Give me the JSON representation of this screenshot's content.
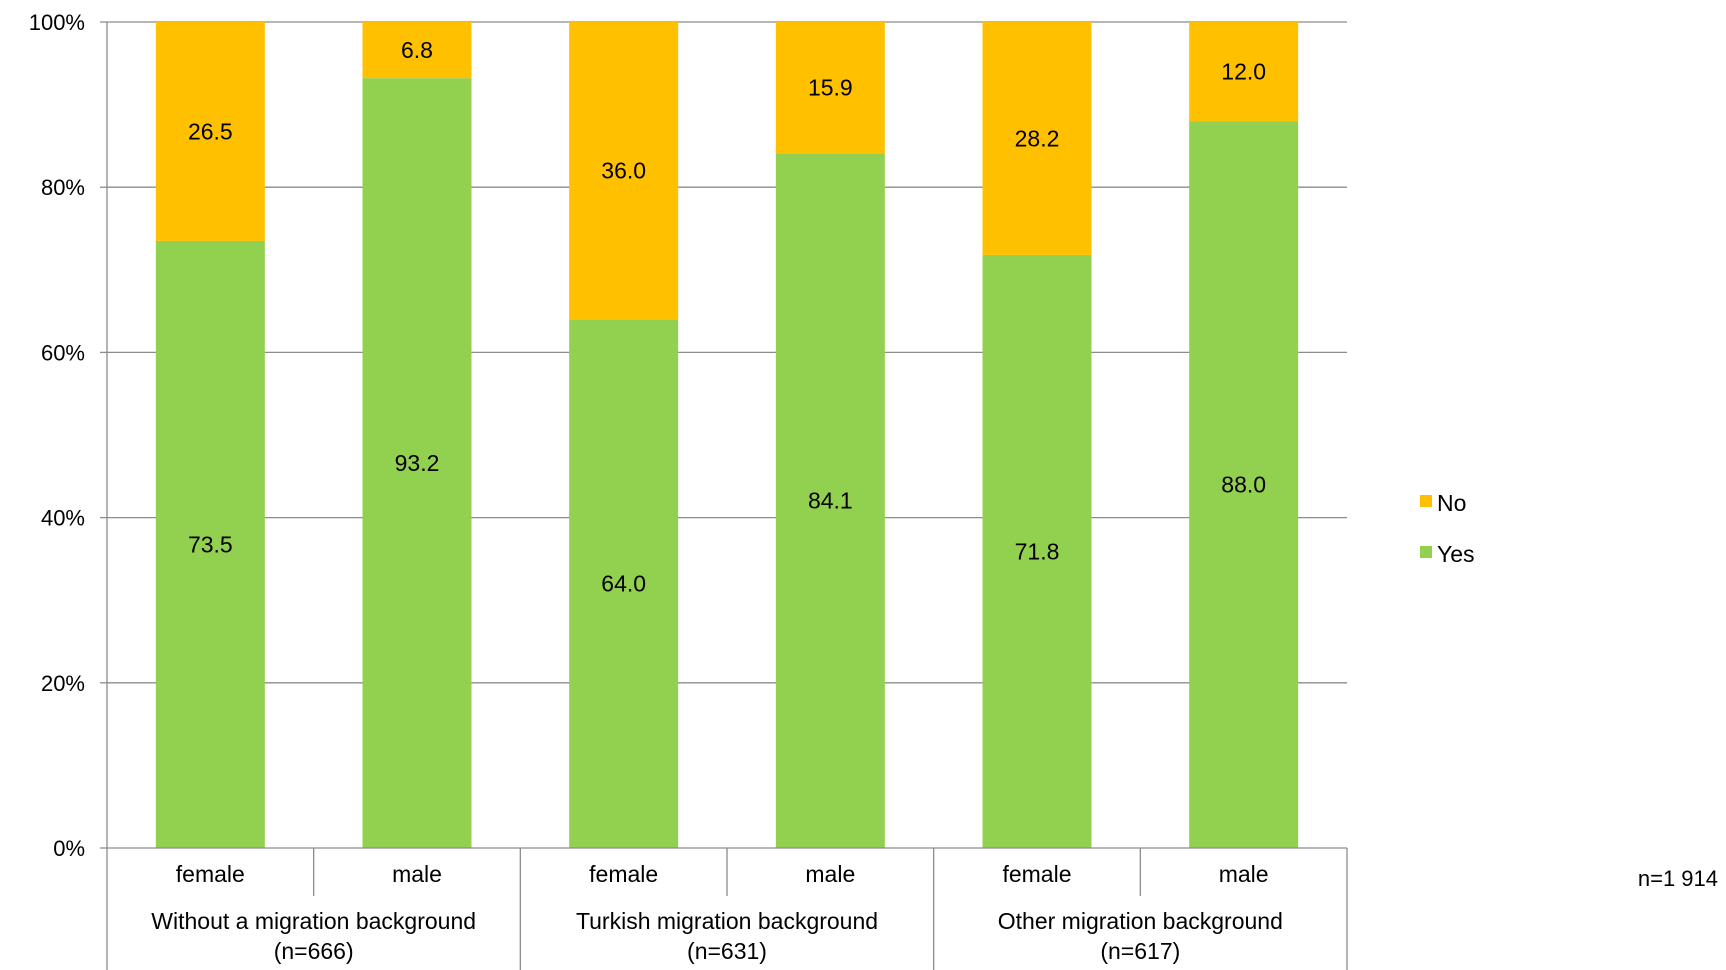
{
  "chart_data": {
    "type": "bar",
    "stacked": true,
    "percent_axis": true,
    "categories": [
      "female",
      "male",
      "female",
      "male",
      "female",
      "male"
    ],
    "groups": [
      {
        "label": "Without a migration background",
        "n_label": "(n=666)"
      },
      {
        "label": "Turkish migration background",
        "n_label": "(n=631)"
      },
      {
        "label": "Other migration background",
        "n_label": "(n=617)"
      }
    ],
    "series": [
      {
        "name": "Yes",
        "color": "#92D050",
        "values": [
          73.5,
          93.2,
          64.0,
          84.1,
          71.8,
          88.0
        ]
      },
      {
        "name": "No",
        "color": "#FFC000",
        "values": [
          26.5,
          6.8,
          36.0,
          15.9,
          28.2,
          12.0
        ]
      }
    ],
    "ylim": [
      0,
      100
    ],
    "yticks": [
      "0%",
      "20%",
      "40%",
      "60%",
      "80%",
      "100%"
    ],
    "grid": true,
    "legend_order": [
      "No",
      "Yes"
    ],
    "legend_position": "right",
    "note": "n=1 914"
  }
}
